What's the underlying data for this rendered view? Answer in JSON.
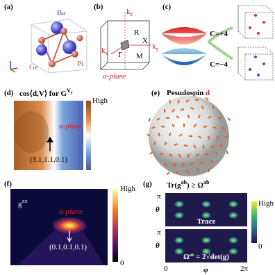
{
  "a": {
    "label": "(a)",
    "atoms": [
      "Ba",
      "Pt",
      "Ge"
    ]
  },
  "b": {
    "label": "(b)",
    "kz": [
      "k",
      "z"
    ],
    "ky": [
      "k",
      "y"
    ],
    "kx": [
      "k",
      "x"
    ],
    "points": [
      "R",
      "X",
      "Γ",
      "M"
    ],
    "plane": "α-plane"
  },
  "c": {
    "label": "(c)",
    "chern": [
      "C=+4",
      "C=−4"
    ]
  },
  "d": {
    "label": "(d)",
    "title": [
      "cos⟨d,V⟩ for G",
      "V",
      "y"
    ],
    "colorbar": "High",
    "plane": "α-plane",
    "point": "(3.1,1.1,0.1)"
  },
  "e": {
    "label": "(e)",
    "title": "Pesudospin",
    "vector": "d"
  },
  "f": {
    "label": "(f)",
    "quantity": [
      "g",
      "xx"
    ],
    "colorbar": [
      "High",
      "0"
    ],
    "plane": "α-plane",
    "point": "(0.1,0.1,0.1)"
  },
  "g": {
    "label": "(g)",
    "title": [
      "Tr(g",
      "ab",
      ") ≥ Ω",
      "ab"
    ],
    "y_ticks": [
      "π",
      "π"
    ],
    "y_labels": [
      "θ",
      "θ"
    ],
    "trace": "Trace",
    "relation": [
      "Ω",
      "ab",
      " = 2√det(g)"
    ],
    "x_ticks": [
      "0",
      "φ",
      "2π"
    ],
    "colorbar": [
      "High",
      "0"
    ]
  }
}
